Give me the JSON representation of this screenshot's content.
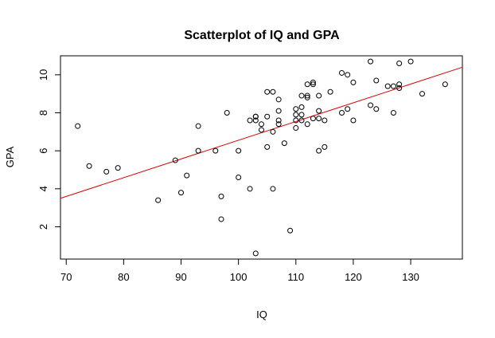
{
  "chart_data": {
    "type": "scatter",
    "title": "Scatterplot of IQ and GPA",
    "xlabel": "IQ",
    "ylabel": "GPA",
    "xlim": [
      69,
      139
    ],
    "ylim": [
      0.3,
      11.0
    ],
    "x_ticks": [
      70,
      80,
      90,
      100,
      110,
      120,
      130
    ],
    "y_ticks": [
      2,
      4,
      6,
      8,
      10
    ],
    "grid": false,
    "legend": "none",
    "point_color": "#000000",
    "fit_color": "#e00000",
    "fit_line": {
      "x": [
        69,
        139
      ],
      "y": [
        3.5,
        10.4
      ]
    },
    "points": [
      {
        "x": 72,
        "y": 7.3
      },
      {
        "x": 74,
        "y": 5.2
      },
      {
        "x": 77,
        "y": 4.9
      },
      {
        "x": 79,
        "y": 5.1
      },
      {
        "x": 86,
        "y": 3.4
      },
      {
        "x": 89,
        "y": 5.5
      },
      {
        "x": 90,
        "y": 3.8
      },
      {
        "x": 91,
        "y": 4.7
      },
      {
        "x": 93,
        "y": 7.3
      },
      {
        "x": 93,
        "y": 6.0
      },
      {
        "x": 96,
        "y": 6.0
      },
      {
        "x": 97,
        "y": 3.6
      },
      {
        "x": 97,
        "y": 2.4
      },
      {
        "x": 98,
        "y": 8.0
      },
      {
        "x": 100,
        "y": 6.0
      },
      {
        "x": 100,
        "y": 4.6
      },
      {
        "x": 102,
        "y": 7.6
      },
      {
        "x": 102,
        "y": 4.0
      },
      {
        "x": 103,
        "y": 7.8
      },
      {
        "x": 103,
        "y": 7.8
      },
      {
        "x": 103,
        "y": 7.6
      },
      {
        "x": 103,
        "y": 0.6
      },
      {
        "x": 104,
        "y": 7.4
      },
      {
        "x": 104,
        "y": 7.1
      },
      {
        "x": 105,
        "y": 9.1
      },
      {
        "x": 105,
        "y": 7.8
      },
      {
        "x": 105,
        "y": 6.2
      },
      {
        "x": 106,
        "y": 9.1
      },
      {
        "x": 106,
        "y": 7.0
      },
      {
        "x": 106,
        "y": 4.0
      },
      {
        "x": 107,
        "y": 8.7
      },
      {
        "x": 107,
        "y": 8.1
      },
      {
        "x": 107,
        "y": 7.6
      },
      {
        "x": 107,
        "y": 7.4
      },
      {
        "x": 108,
        "y": 6.4
      },
      {
        "x": 109,
        "y": 1.8
      },
      {
        "x": 110,
        "y": 8.2
      },
      {
        "x": 110,
        "y": 7.9
      },
      {
        "x": 110,
        "y": 7.6
      },
      {
        "x": 110,
        "y": 7.2
      },
      {
        "x": 111,
        "y": 8.9
      },
      {
        "x": 111,
        "y": 8.3
      },
      {
        "x": 111,
        "y": 7.9
      },
      {
        "x": 111,
        "y": 7.6
      },
      {
        "x": 112,
        "y": 9.5
      },
      {
        "x": 112,
        "y": 8.9
      },
      {
        "x": 112,
        "y": 8.8
      },
      {
        "x": 112,
        "y": 7.4
      },
      {
        "x": 113,
        "y": 9.6
      },
      {
        "x": 113,
        "y": 9.5
      },
      {
        "x": 113,
        "y": 7.7
      },
      {
        "x": 114,
        "y": 8.9
      },
      {
        "x": 114,
        "y": 8.1
      },
      {
        "x": 114,
        "y": 7.7
      },
      {
        "x": 114,
        "y": 6.0
      },
      {
        "x": 115,
        "y": 7.6
      },
      {
        "x": 115,
        "y": 6.2
      },
      {
        "x": 116,
        "y": 9.1
      },
      {
        "x": 118,
        "y": 10.1
      },
      {
        "x": 118,
        "y": 8.0
      },
      {
        "x": 119,
        "y": 10.0
      },
      {
        "x": 119,
        "y": 8.2
      },
      {
        "x": 120,
        "y": 9.6
      },
      {
        "x": 120,
        "y": 7.6
      },
      {
        "x": 123,
        "y": 10.7
      },
      {
        "x": 123,
        "y": 8.4
      },
      {
        "x": 124,
        "y": 9.7
      },
      {
        "x": 124,
        "y": 8.2
      },
      {
        "x": 126,
        "y": 9.4
      },
      {
        "x": 127,
        "y": 9.4
      },
      {
        "x": 127,
        "y": 8.0
      },
      {
        "x": 128,
        "y": 10.6
      },
      {
        "x": 128,
        "y": 9.5
      },
      {
        "x": 128,
        "y": 9.3
      },
      {
        "x": 130,
        "y": 10.7
      },
      {
        "x": 132,
        "y": 9.0
      },
      {
        "x": 136,
        "y": 9.5
      }
    ]
  }
}
